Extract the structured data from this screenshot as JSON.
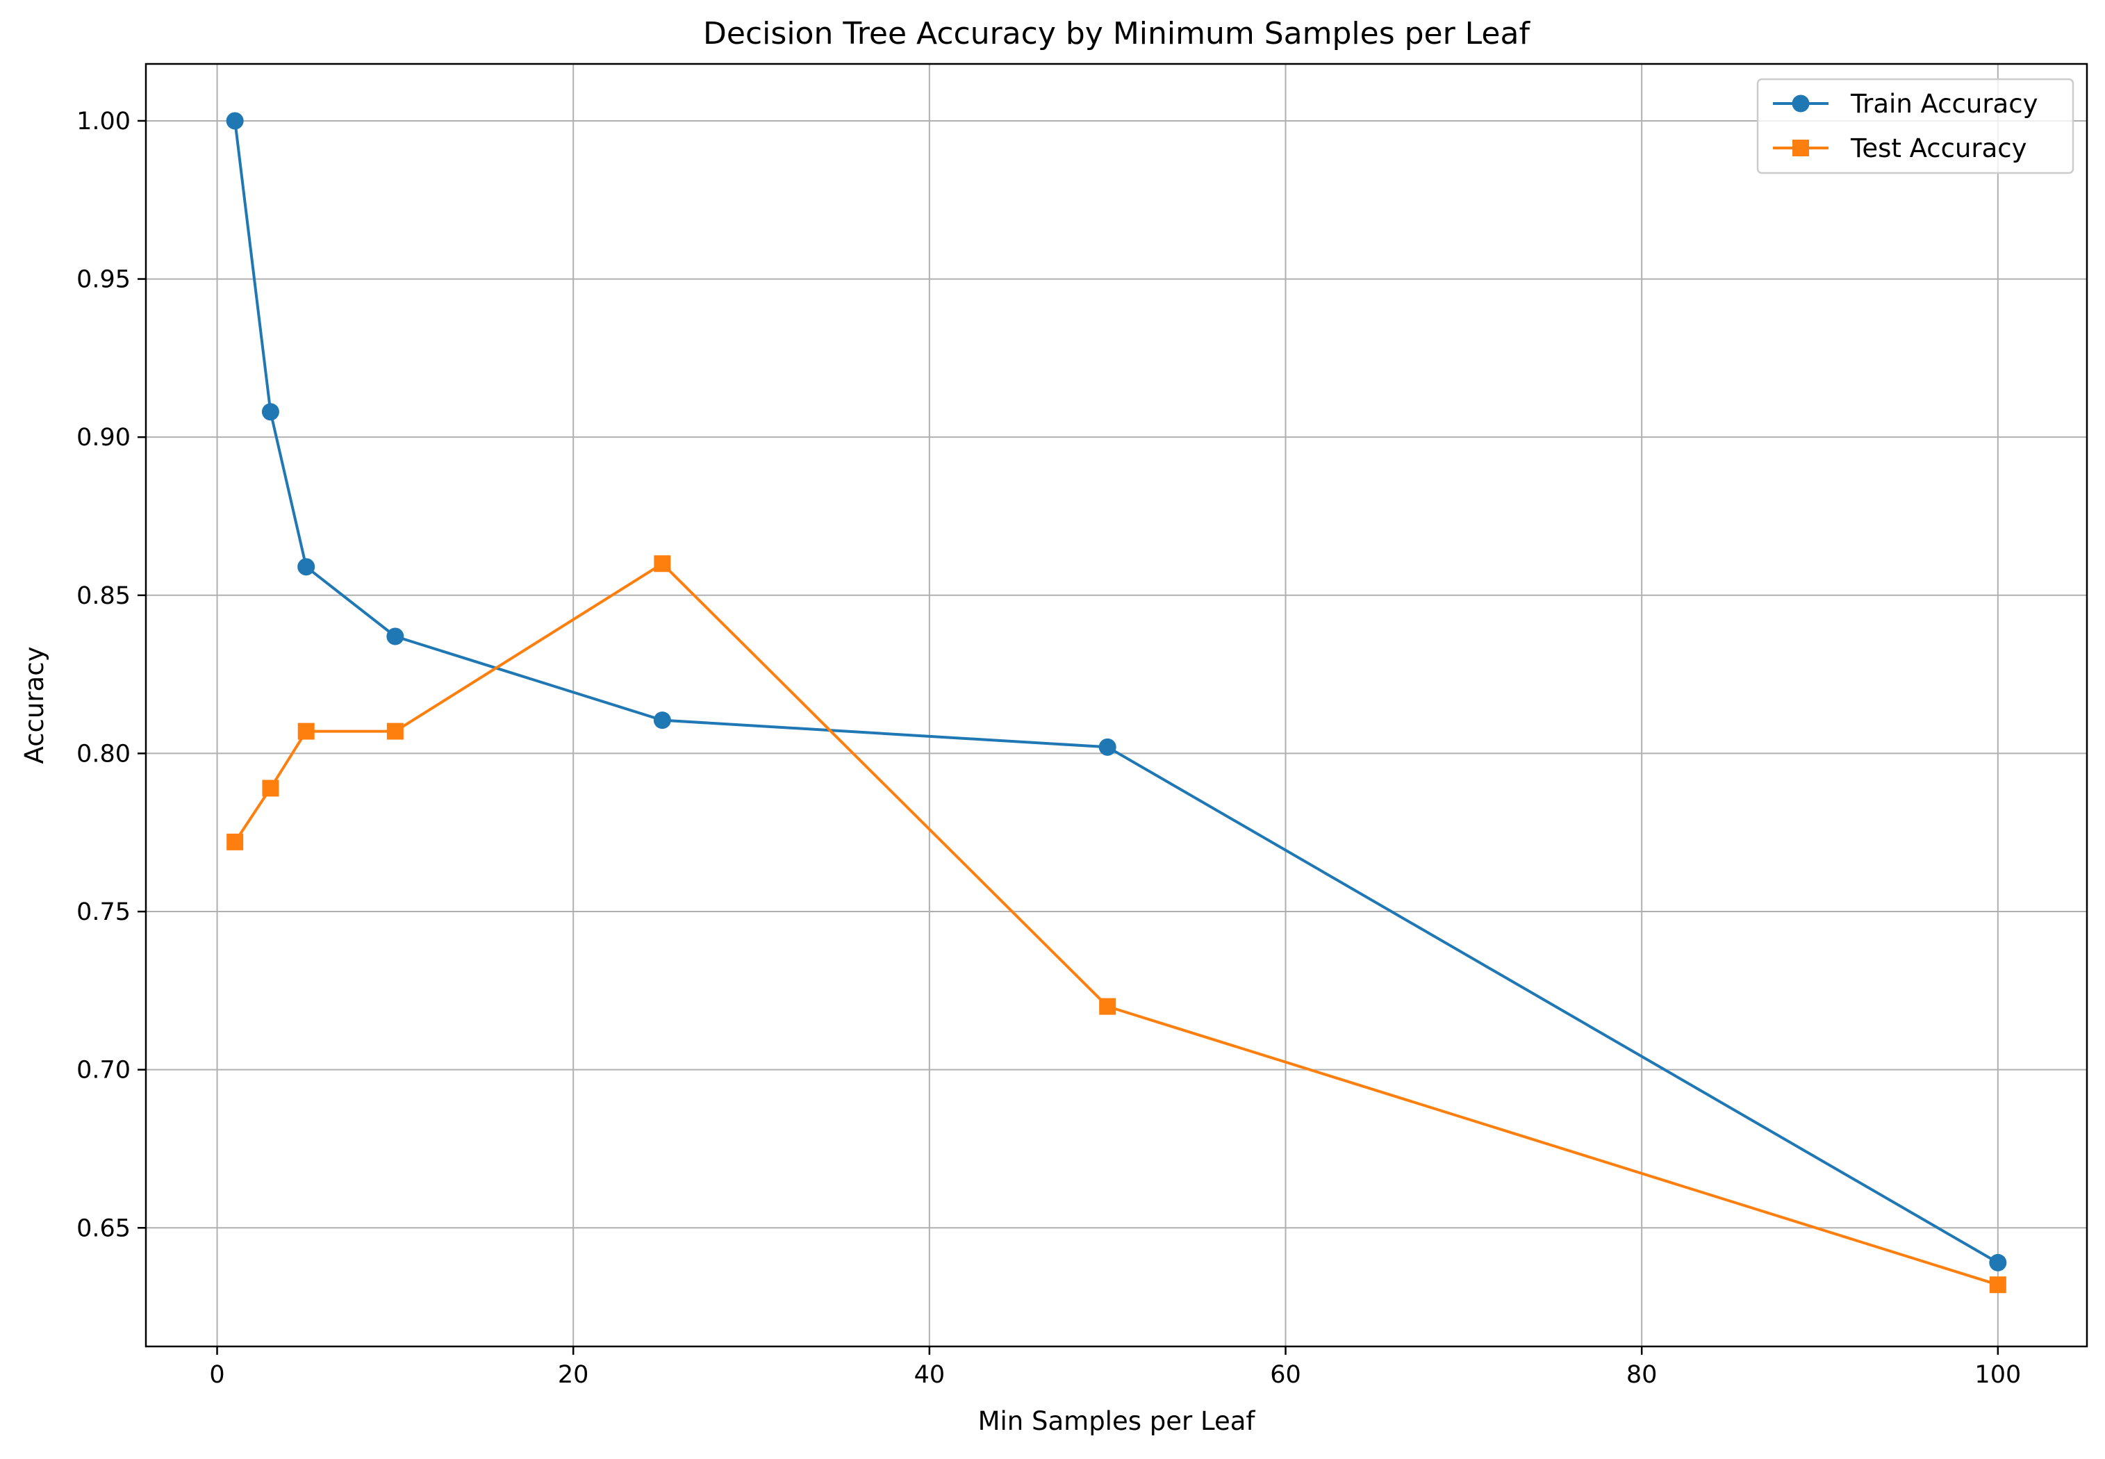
{
  "chart_data": {
    "type": "line",
    "title": "Decision Tree Accuracy by Minimum Samples per Leaf",
    "xlabel": "Min Samples per Leaf",
    "ylabel": "Accuracy",
    "x": [
      1,
      3,
      5,
      10,
      25,
      50,
      100
    ],
    "xlim": [
      -4,
      105
    ],
    "ylim": [
      0.6125,
      1.018
    ],
    "xticks": [
      0,
      20,
      40,
      60,
      80,
      100
    ],
    "yticks": [
      0.65,
      0.7,
      0.75,
      0.8,
      0.85,
      0.9,
      0.95,
      1.0
    ],
    "xtick_labels": [
      "0",
      "20",
      "40",
      "60",
      "80",
      "100"
    ],
    "ytick_labels": [
      "0.65",
      "0.70",
      "0.75",
      "0.80",
      "0.85",
      "0.90",
      "0.95",
      "1.00"
    ],
    "grid": true,
    "legend_position": "top-right",
    "series": [
      {
        "name": "Train Accuracy",
        "values": [
          1.0,
          0.908,
          0.859,
          0.837,
          0.8105,
          0.802,
          0.639
        ],
        "color": "#1f77b4",
        "marker": "circle"
      },
      {
        "name": "Test Accuracy",
        "values": [
          0.772,
          0.789,
          0.807,
          0.807,
          0.86,
          0.72,
          0.632
        ],
        "color": "#ff7f0e",
        "marker": "square"
      }
    ]
  }
}
